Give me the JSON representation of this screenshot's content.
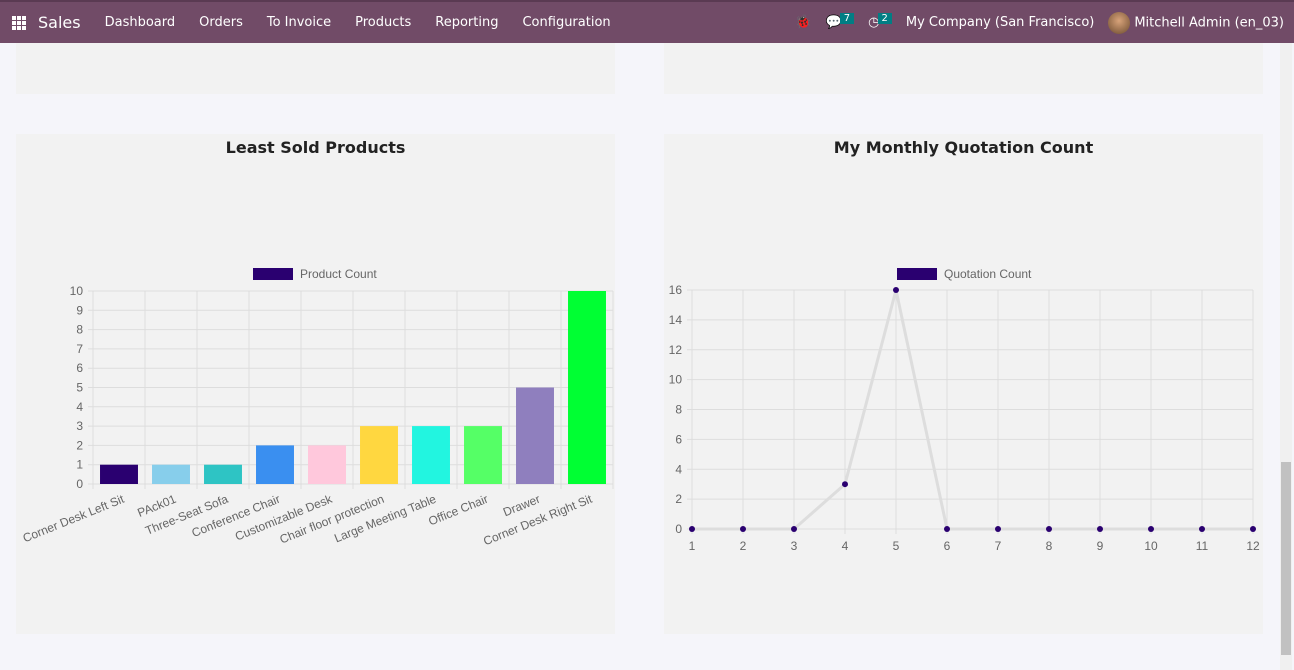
{
  "nav": {
    "app": "Sales",
    "menus": [
      "Dashboard",
      "Orders",
      "To Invoice",
      "Products",
      "Reporting",
      "Configuration"
    ],
    "messages_count": "7",
    "activities_count": "2",
    "company": "My Company (San Francisco)",
    "user": "Mitchell Admin (en_03)"
  },
  "chart_data": [
    {
      "type": "bar",
      "title": "Least Sold Products",
      "legend": "Product Count",
      "legend_position": "top",
      "grid": true,
      "categories": [
        "Corner Desk Left Sit",
        "PAck01",
        "Three-Seat Sofa",
        "Conference Chair",
        "Customizable Desk",
        "Chair floor protection",
        "Large Meeting Table",
        "Office Chair",
        "Drawer",
        "Corner Desk Right Sit"
      ],
      "values": [
        1,
        1,
        1,
        2,
        2,
        3,
        3,
        3,
        5,
        10
      ],
      "colors": [
        "#2a0070",
        "#87ceeb",
        "#2ec4c4",
        "#3a8ff0",
        "#ffc8dc",
        "#ffd740",
        "#22f5e0",
        "#55ff66",
        "#8f7fbe",
        "#00ff33"
      ],
      "ylim": [
        0,
        10
      ],
      "yticks": [
        0,
        1,
        2,
        3,
        4,
        5,
        6,
        7,
        8,
        9,
        10
      ]
    },
    {
      "type": "line",
      "title": "My Monthly Quotation Count",
      "legend": "Quotation Count",
      "legend_position": "top",
      "grid": true,
      "x": [
        1,
        2,
        3,
        4,
        5,
        6,
        7,
        8,
        9,
        10,
        11,
        12
      ],
      "values": [
        0,
        0,
        0,
        3,
        16,
        0,
        0,
        0,
        0,
        0,
        0,
        0
      ],
      "line_color": "#dddddd",
      "point_color": "#2a0070",
      "ylim": [
        0,
        16
      ],
      "yticks": [
        0,
        2,
        4,
        6,
        8,
        10,
        12,
        14,
        16
      ]
    }
  ]
}
